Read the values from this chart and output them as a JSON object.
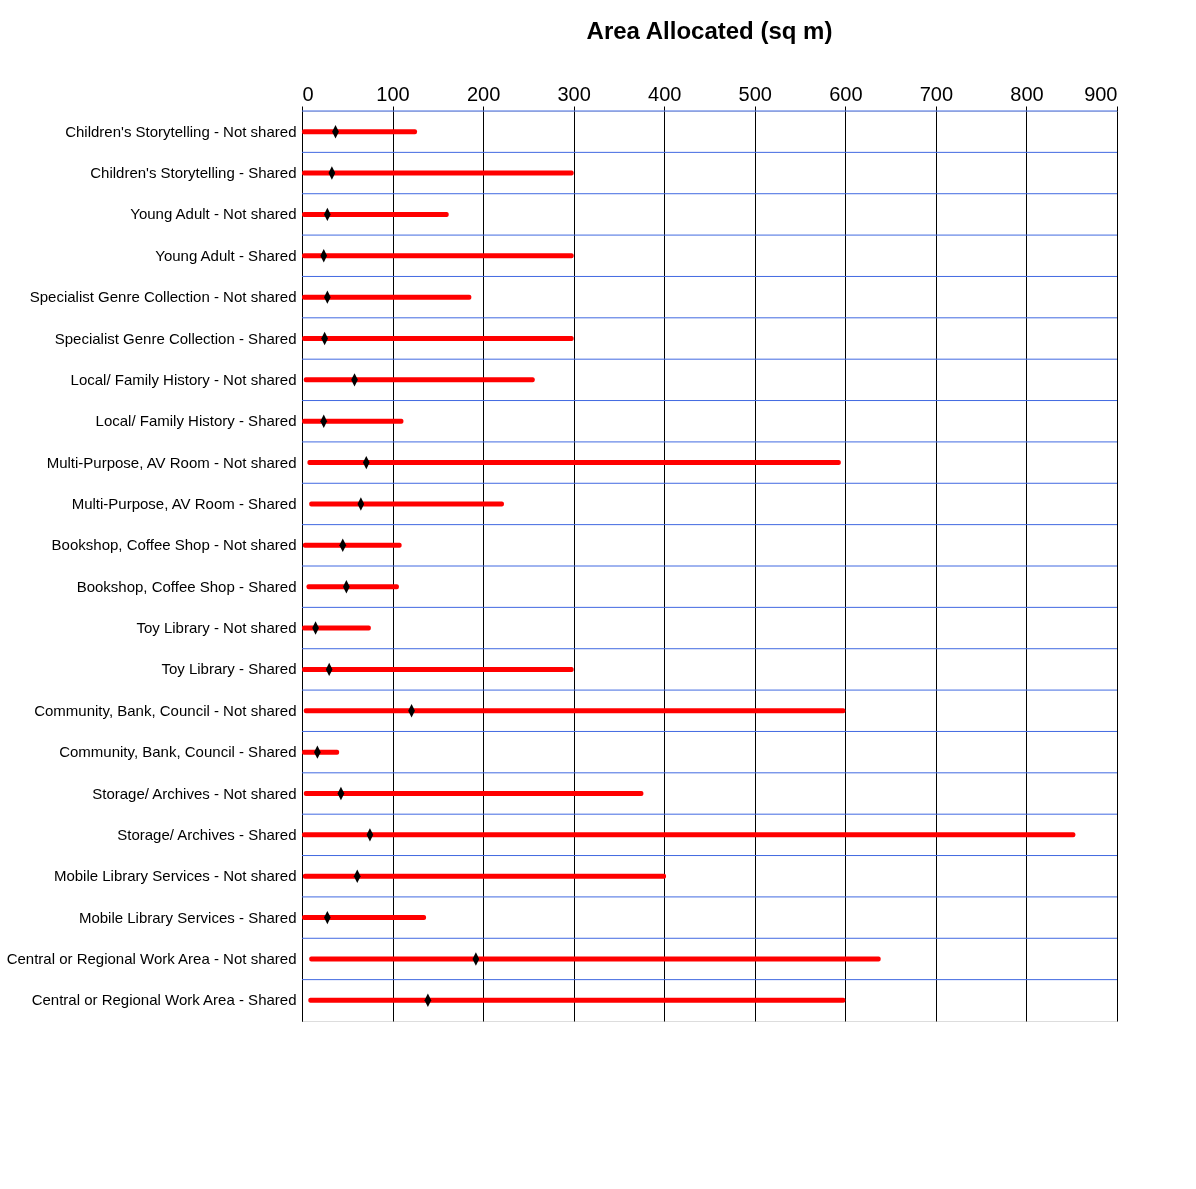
{
  "chart_data": {
    "type": "bar",
    "orientation": "horizontal",
    "title": "Area Allocated (sq m)",
    "categories": [
      "Children's Storytelling - Not shared",
      "Children's Storytelling - Shared",
      "Young Adult - Not shared",
      "Young Adult - Shared",
      "Specialist Genre Collection - Not shared",
      "Specialist Genre Collection - Shared",
      "Local/ Family History - Not shared",
      "Local/ Family History - Shared",
      "Multi-Purpose, AV Room - Not shared",
      "Multi-Purpose, AV Room - Shared",
      "Bookshop, Coffee Shop - Not shared",
      "Bookshop, Coffee Shop - Shared",
      "Toy Library - Not shared",
      "Toy Library - Shared",
      "Community, Bank, Council - Not shared",
      "Community, Bank, Council - Shared",
      "Storage/ Archives - Not shared",
      "Storage/ Archives - Shared",
      "Mobile Library Services - Not shared",
      "Mobile Library Services - Shared",
      "Central or Regional Work Area - Not shared",
      "Central or Regional Work Area - Shared"
    ],
    "series": [
      {
        "type": "bar",
        "color": "#ff0000",
        "base": [
          0,
          0,
          0,
          0,
          0,
          0,
          2,
          0,
          6,
          8,
          1,
          5,
          0,
          0,
          2,
          0,
          2,
          0,
          1,
          0,
          8,
          7
        ],
        "values": [
          127,
          300,
          162,
          300,
          187,
          300,
          255,
          112,
          589,
          215,
          109,
          102,
          76,
          300,
          598,
          41,
          375,
          854,
          401,
          137,
          631,
          593
        ]
      },
      {
        "type": "scatter",
        "color": "#000000",
        "x": [
          "Children's Storytelling - Not shared",
          "Children's Storytelling - Shared",
          "Young Adult - Not shared",
          "Young Adult - Shared",
          "Specialist Genre Collection - Not shared",
          "Specialist Genre Collection - Shared",
          "Local/ Family History - Not shared",
          "Local/ Family History - Shared",
          "Multi-Purpose, AV Room - Not shared",
          "Multi-Purpose, AV Room - Shared",
          "Bookshop, Coffee Shop - Not shared",
          "Bookshop, Coffee Shop - Shared",
          "Toy Library - Not shared",
          "Toy Library - Shared",
          "Community, Bank, Council - Not shared",
          "Community, Bank, Council - Shared",
          "Storage/ Archives - Not shared",
          "Storage/ Archives - Shared",
          "Mobile Library Services - Not shared",
          "Mobile Library Services - Shared",
          "Central or Regional Work Area - Not shared",
          "Central or Regional Work Area - Shared"
        ],
        "values": [
          37,
          33,
          28,
          24,
          28,
          25,
          58,
          24,
          71,
          65,
          45,
          49,
          15,
          30,
          121,
          17,
          43,
          75,
          61,
          28,
          192,
          139
        ]
      }
    ],
    "xlim": [
      0,
      900
    ],
    "xticks": [
      0,
      100,
      200,
      300,
      400,
      500,
      600,
      700,
      800,
      900
    ],
    "grid": true
  }
}
